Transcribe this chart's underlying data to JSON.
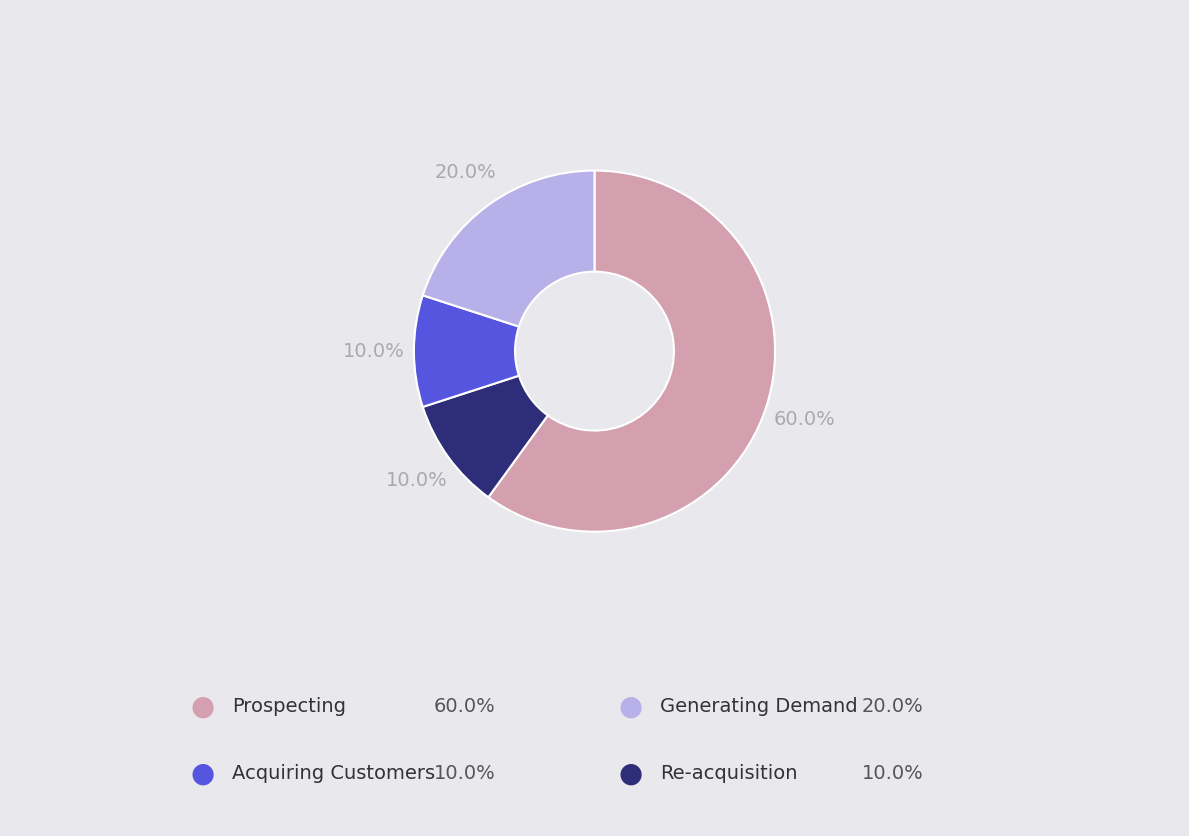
{
  "labels": [
    "Prospecting",
    "Re-acquisition",
    "Acquiring Customers",
    "Generating Demand"
  ],
  "values": [
    60.0,
    10.0,
    10.0,
    20.0
  ],
  "colors": [
    "#d4a0b0",
    "#2d2d7a",
    "#5555e0",
    "#b8b0e8"
  ],
  "background_color": "#e9e9ed",
  "startangle": 90,
  "text_color": "#aaaaaa",
  "label_fontsize": 14,
  "legend_fontsize": 14,
  "pct_distance": 1.22,
  "legend_entries": [
    {
      "label": "Prospecting",
      "value": "60.0%",
      "color": "#d4a0b0"
    },
    {
      "label": "Generating Demand",
      "value": "20.0%",
      "color": "#b8b0e8"
    },
    {
      "label": "Acquiring Customers",
      "value": "10.0%",
      "color": "#5555e0"
    },
    {
      "label": "Re-acquisition",
      "value": "10.0%",
      "color": "#2d2d7a"
    }
  ]
}
